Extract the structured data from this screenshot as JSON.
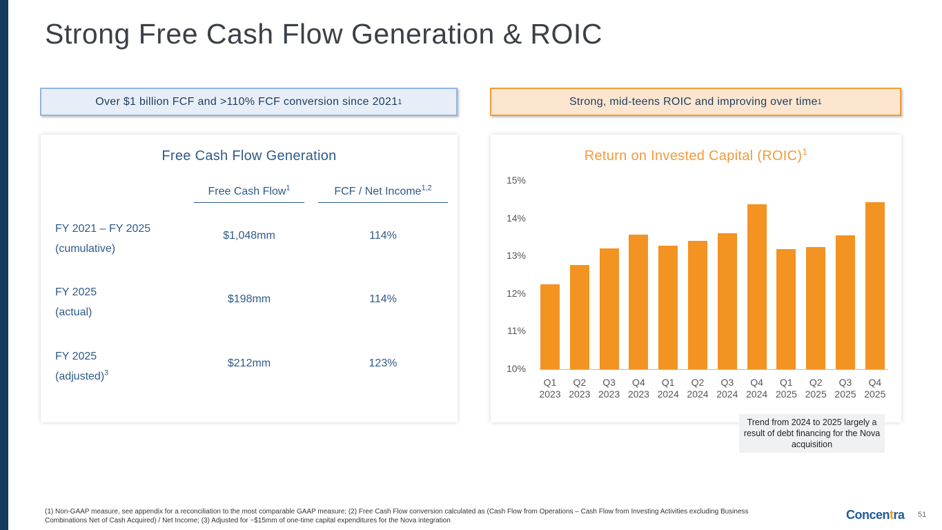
{
  "title": "Strong Free Cash Flow Generation & ROIC",
  "callouts": {
    "left": {
      "text": "Over $1 billion FCF and >110% FCF conversion since 2021",
      "sup": "1"
    },
    "right": {
      "text": "Strong, mid-teens ROIC and improving over time",
      "sup": "1"
    }
  },
  "fcf": {
    "title": "Free Cash Flow Generation",
    "columns": [
      {
        "label": "Free Cash Flow",
        "sup": "1"
      },
      {
        "label": "FCF / Net Income",
        "sup": "1,2"
      }
    ],
    "rows": [
      {
        "label1": "FY 2021 – FY 2025",
        "label2": "(cumulative)",
        "sup": "",
        "fcf": "$1,048mm",
        "ratio": "114%"
      },
      {
        "label1": "FY 2025",
        "label2": "(actual)",
        "sup": "",
        "fcf": "$198mm",
        "ratio": "114%"
      },
      {
        "label1": "FY 2025",
        "label2": "(adjusted)",
        "sup": "3",
        "fcf": "$212mm",
        "ratio": "123%"
      }
    ]
  },
  "chart_data": {
    "type": "bar",
    "title": "Return on Invested Capital (ROIC)",
    "title_sup": "1",
    "categories": [
      "Q1 2023",
      "Q2 2023",
      "Q3 2023",
      "Q4 2023",
      "Q1 2024",
      "Q2 2024",
      "Q3 2024",
      "Q4 2024",
      "Q1 2025",
      "Q2 2025",
      "Q3 2025",
      "Q4 2025"
    ],
    "cat_lines": [
      [
        "Q1",
        "2023"
      ],
      [
        "Q2",
        "2023"
      ],
      [
        "Q3",
        "2023"
      ],
      [
        "Q4",
        "2023"
      ],
      [
        "Q1",
        "2024"
      ],
      [
        "Q2",
        "2024"
      ],
      [
        "Q3",
        "2024"
      ],
      [
        "Q4",
        "2024"
      ],
      [
        "Q1",
        "2025"
      ],
      [
        "Q2",
        "2025"
      ],
      [
        "Q3",
        "2025"
      ],
      [
        "Q4",
        "2025"
      ]
    ],
    "values": [
      12.25,
      12.77,
      13.2,
      13.57,
      13.28,
      13.4,
      13.6,
      14.38,
      13.19,
      13.25,
      13.55,
      14.43
    ],
    "ylim": [
      10,
      15
    ],
    "yticks": [
      "10%",
      "11%",
      "12%",
      "13%",
      "14%",
      "15%"
    ],
    "ylabel": "",
    "xlabel": "",
    "grid": false,
    "color": "#f39322"
  },
  "note": "Trend from 2024 to 2025 largely a result of debt financing for the Nova acquisition",
  "footnote": "(1) Non-GAAP measure, see appendix for a reconciliation to the most comparable GAAP measure; (2) Free Cash Flow conversion calculated as (Cash Flow from Operations – Cash Flow from Investing Activities excluding Business Combinations Net of Cash Acquired) / Net Income; (3) Adjusted for ~$15mm of one-time capital expenditures for the Nova integration",
  "logo": {
    "text1": "Concen",
    "text2": "t",
    "text3": "ra"
  },
  "page_number": "51"
}
